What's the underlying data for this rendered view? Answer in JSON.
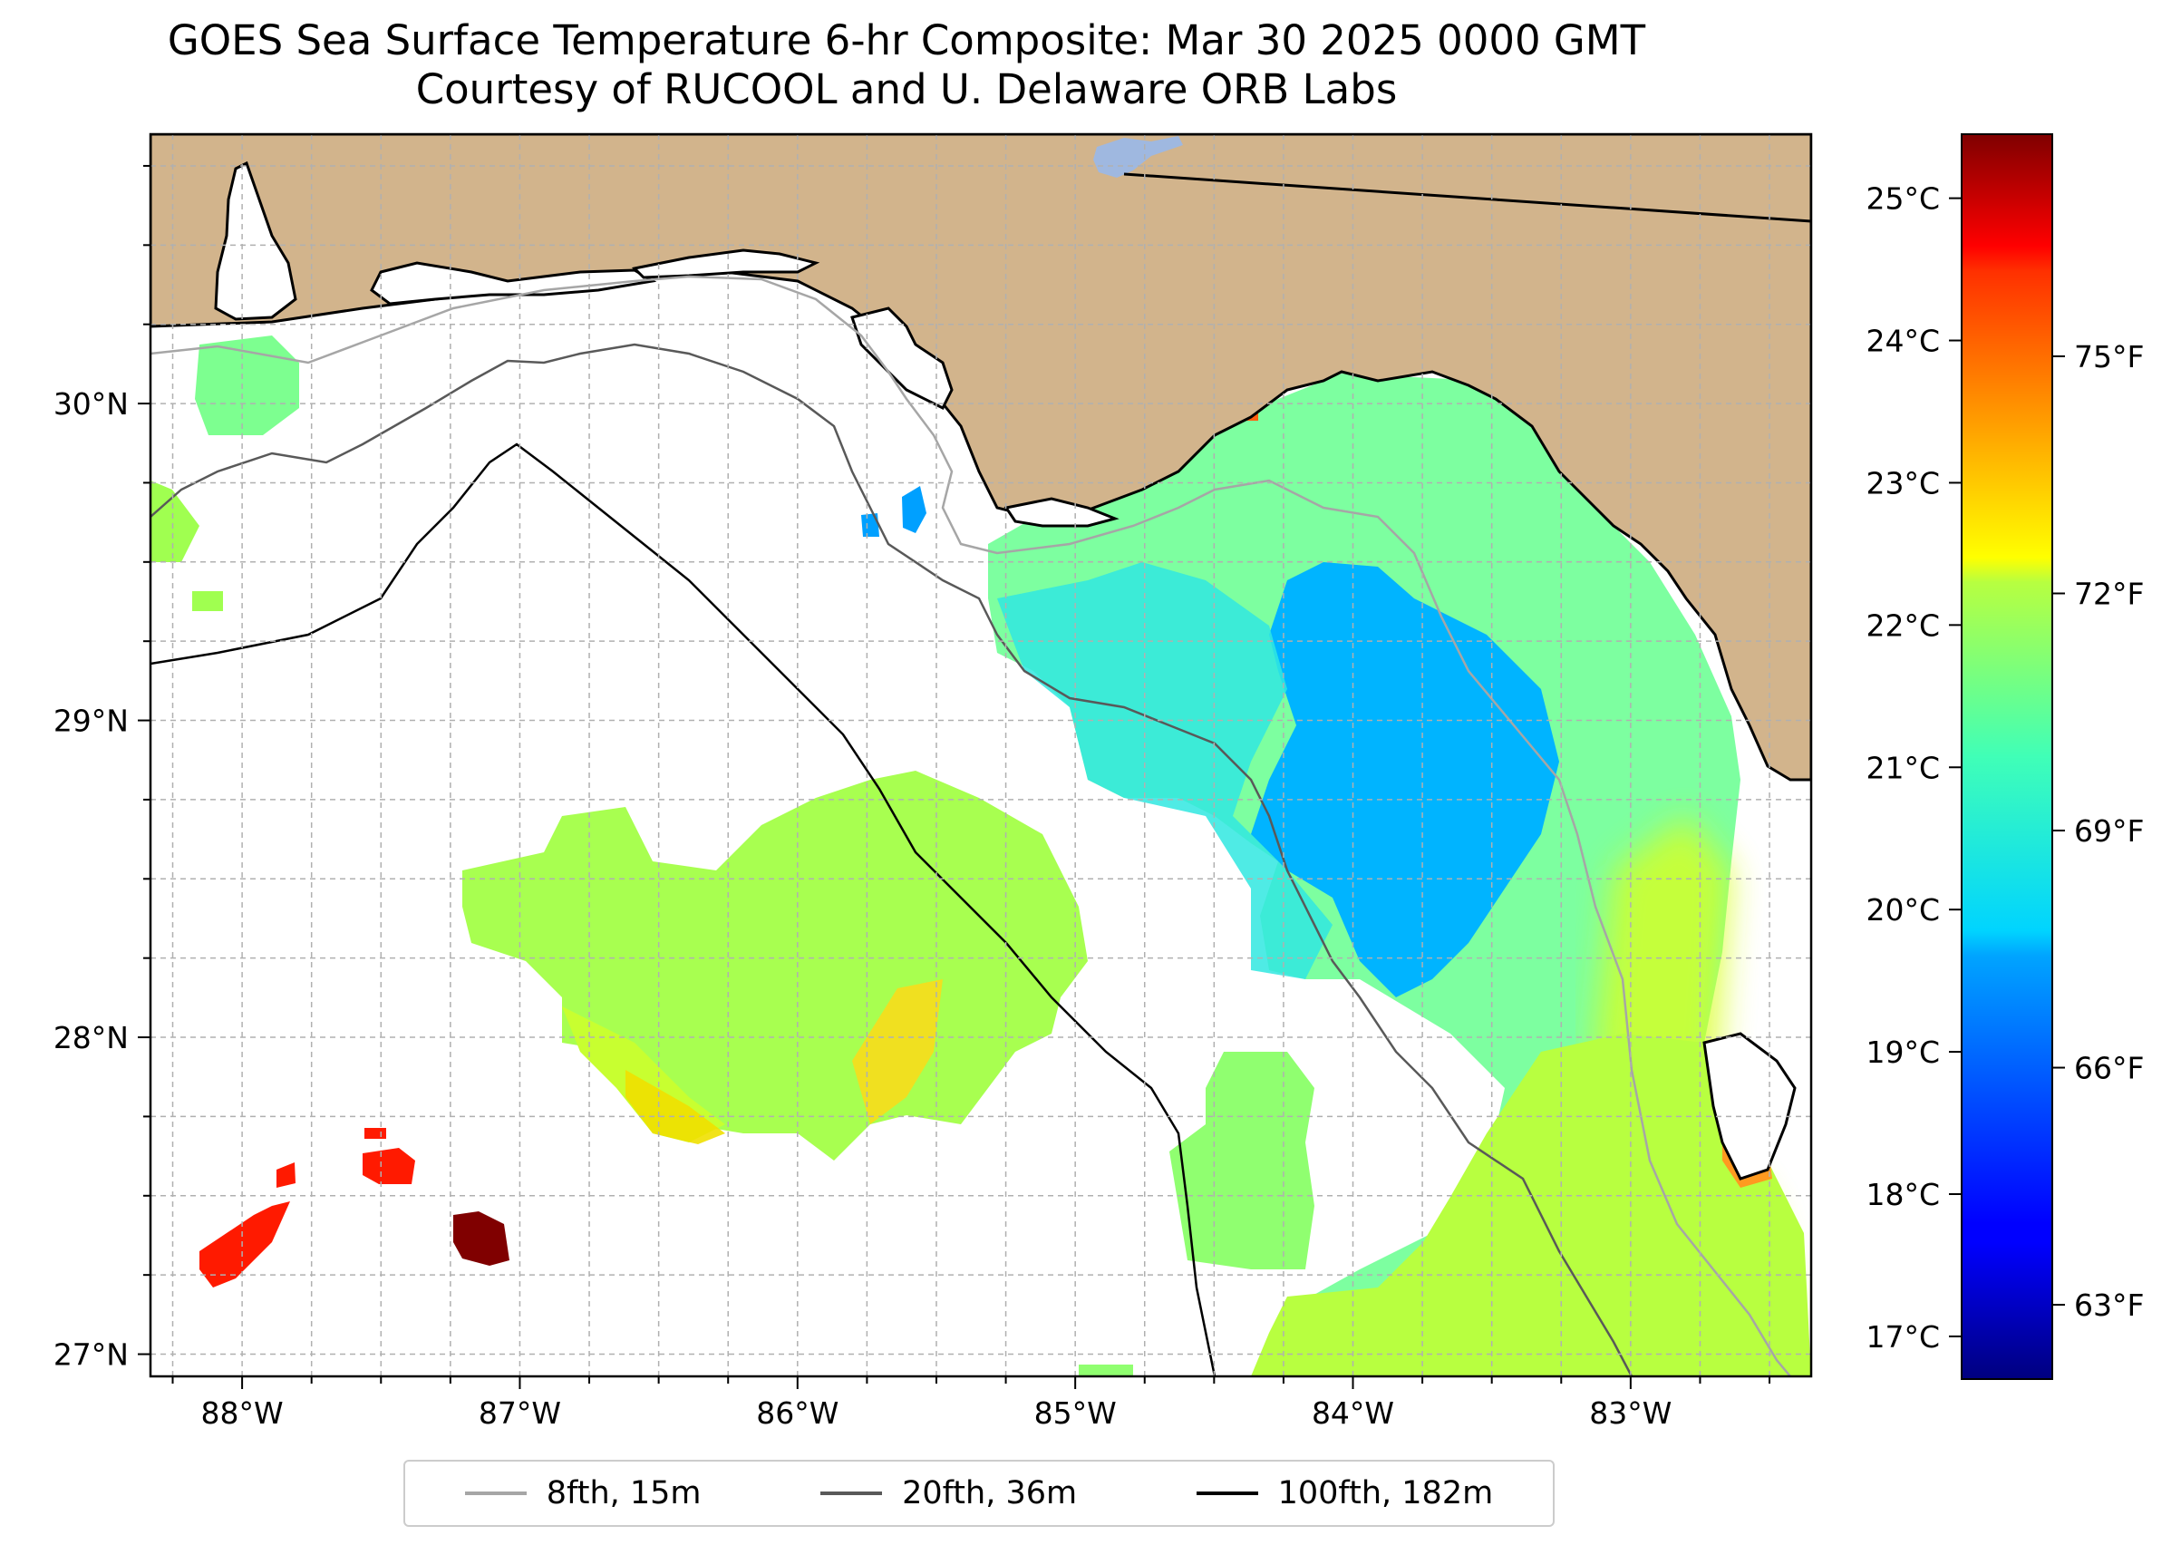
{
  "title": {
    "line1": "GOES Sea Surface Temperature 6-hr Composite: Mar 30 2025 0000 GMT",
    "line2": "Courtesy of RUCOOL and U. Delaware ORB Labs"
  },
  "map": {
    "lon_range": [
      -88.33,
      -82.35
    ],
    "lat_range": [
      26.93,
      30.85
    ],
    "lon_ticks": [
      {
        "value": -88,
        "label": "88°W"
      },
      {
        "value": -87,
        "label": "87°W"
      },
      {
        "value": -86,
        "label": "86°W"
      },
      {
        "value": -85,
        "label": "85°W"
      },
      {
        "value": -84,
        "label": "84°W"
      },
      {
        "value": -83,
        "label": "83°W"
      }
    ],
    "lat_ticks": [
      {
        "value": 27,
        "label": "27°N"
      },
      {
        "value": 28,
        "label": "28°N"
      },
      {
        "value": 29,
        "label": "29°N"
      },
      {
        "value": 30,
        "label": "30°N"
      }
    ],
    "grid_step": 0.25,
    "colors": {
      "land": "#d2b48c",
      "ocean": "#ffffff",
      "grid": "#b0b0b0",
      "lake": "#9fb8e0"
    }
  },
  "colorbar": {
    "colormap": "jet",
    "celsius_range": [
      16.7,
      25.45
    ],
    "celsius_ticks": [
      {
        "value": 17,
        "label": "17°C"
      },
      {
        "value": 18,
        "label": "18°C"
      },
      {
        "value": 19,
        "label": "19°C"
      },
      {
        "value": 20,
        "label": "20°C"
      },
      {
        "value": 21,
        "label": "21°C"
      },
      {
        "value": 22,
        "label": "22°C"
      },
      {
        "value": 23,
        "label": "23°C"
      },
      {
        "value": 24,
        "label": "24°C"
      },
      {
        "value": 25,
        "label": "25°C"
      }
    ],
    "fahrenheit_ticks": [
      {
        "value": 63,
        "label": "63°F"
      },
      {
        "value": 66,
        "label": "66°F"
      },
      {
        "value": 69,
        "label": "69°F"
      },
      {
        "value": 72,
        "label": "72°F"
      },
      {
        "value": 75,
        "label": "75°F"
      }
    ]
  },
  "legend": {
    "items": [
      {
        "label": "8fth, 15m",
        "color": "#a6a6a6"
      },
      {
        "label": "20fth, 36m",
        "color": "#595959"
      },
      {
        "label": "100fth, 182m",
        "color": "#000000"
      }
    ]
  }
}
